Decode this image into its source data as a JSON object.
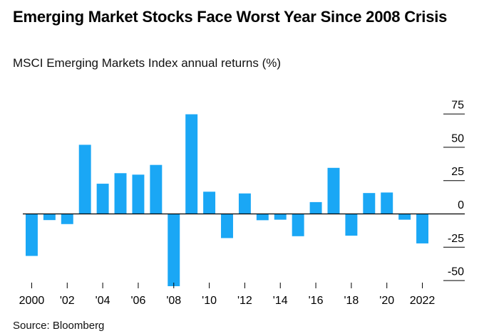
{
  "chart_data": {
    "type": "bar",
    "title": "Emerging Market Stocks Face Worst Year Since 2008 Crisis",
    "subtitle": "MSCI Emerging Markets Index annual returns (%)",
    "source": "Source: Bloomberg",
    "xlabel": "",
    "ylabel": "",
    "years": [
      2000,
      2001,
      2002,
      2003,
      2004,
      2005,
      2006,
      2007,
      2008,
      2009,
      2010,
      2011,
      2012,
      2013,
      2014,
      2015,
      2016,
      2017,
      2018,
      2019,
      2020,
      2021,
      2022
    ],
    "values": [
      -31.8,
      -4.9,
      -7.9,
      51.6,
      22.4,
      30.3,
      29.2,
      36.5,
      -54.5,
      74.5,
      16.4,
      -18.4,
      15.1,
      -5.0,
      -4.6,
      -17.0,
      8.6,
      34.3,
      -16.6,
      15.4,
      15.8,
      -4.6,
      -22.4
    ],
    "tick_labels": [
      "2000",
      "'02",
      "'04",
      "'06",
      "'08",
      "'10",
      "'12",
      "'14",
      "'16",
      "'18",
      "'20",
      "2022"
    ],
    "tick_years": [
      2000,
      2002,
      2004,
      2006,
      2008,
      2010,
      2012,
      2014,
      2016,
      2018,
      2020,
      2022
    ],
    "yticks": [
      75,
      50,
      25,
      0,
      -25,
      -50
    ],
    "ylim": [
      -55,
      80
    ],
    "grid": false,
    "bar_color": "#1aa7f5",
    "axis_color": "#000000"
  }
}
